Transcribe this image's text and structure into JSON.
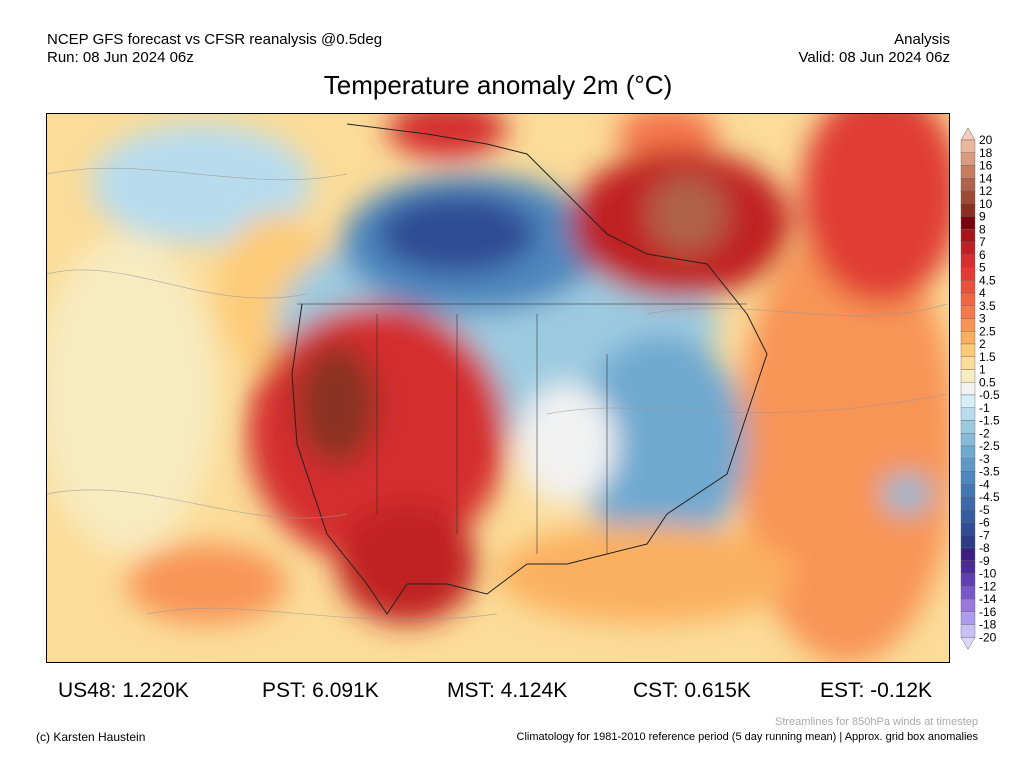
{
  "header": {
    "source": "NCEP GFS forecast vs CFSR reanalysis @0.5deg",
    "run": "Run: 08 Jun 2024 06z",
    "type": "Analysis",
    "valid": "Valid: 08 Jun 2024 06z"
  },
  "title": "Temperature anomaly 2m (°C)",
  "stats": [
    {
      "label": "US48: 1.220K"
    },
    {
      "label": "PST: 6.091K"
    },
    {
      "label": "MST: 4.124K"
    },
    {
      "label": "CST: 0.615K"
    },
    {
      "label": "EST: -0.12K"
    }
  ],
  "footer": {
    "credit": "(c) Karsten Haustein",
    "streamlines": "Streamlines for 850hPa winds at timestep",
    "climatology": "Climatology for 1981-2010 reference period (5 day running mean) | Approx. grid box anomalies"
  },
  "legend": {
    "labels": [
      "20",
      "18",
      "16",
      "14",
      "12",
      "10",
      "9",
      "8",
      "7",
      "6",
      "5",
      "4.5",
      "4",
      "3.5",
      "3",
      "2.5",
      "2",
      "1.5",
      "1",
      "0.5",
      "-0.5",
      "-1",
      "-1.5",
      "-2",
      "-2.5",
      "-3",
      "-3.5",
      "-4",
      "-4.5",
      "-5",
      "-6",
      "-7",
      "-8",
      "-9",
      "-10",
      "-12",
      "-14",
      "-16",
      "-18",
      "-20"
    ],
    "colors": [
      "#e9b59c",
      "#d99a7e",
      "#c87c62",
      "#b0624a",
      "#9a4a35",
      "#8a3022",
      "#7a0010",
      "#a81418",
      "#c02024",
      "#d42f2e",
      "#e03c34",
      "#ea503c",
      "#f06644",
      "#f4784c",
      "#f89456",
      "#fbb060",
      "#fdcb78",
      "#fbdc98",
      "#f8ebc0",
      "#f2f2f2",
      "#d6eefa",
      "#b8dcee",
      "#9ccbe0",
      "#86bcd8",
      "#70a9d0",
      "#5e99c8",
      "#4f88be",
      "#4478b4",
      "#3d69aa",
      "#375ca0",
      "#2f4c94",
      "#2a3c86",
      "#3a1f80",
      "#4a2c98",
      "#6040b0",
      "#7858c8",
      "#9878dc",
      "#b09cec",
      "#c8c0f4"
    ],
    "over": "#f5cdb8",
    "under": "#dcd8fa"
  }
}
